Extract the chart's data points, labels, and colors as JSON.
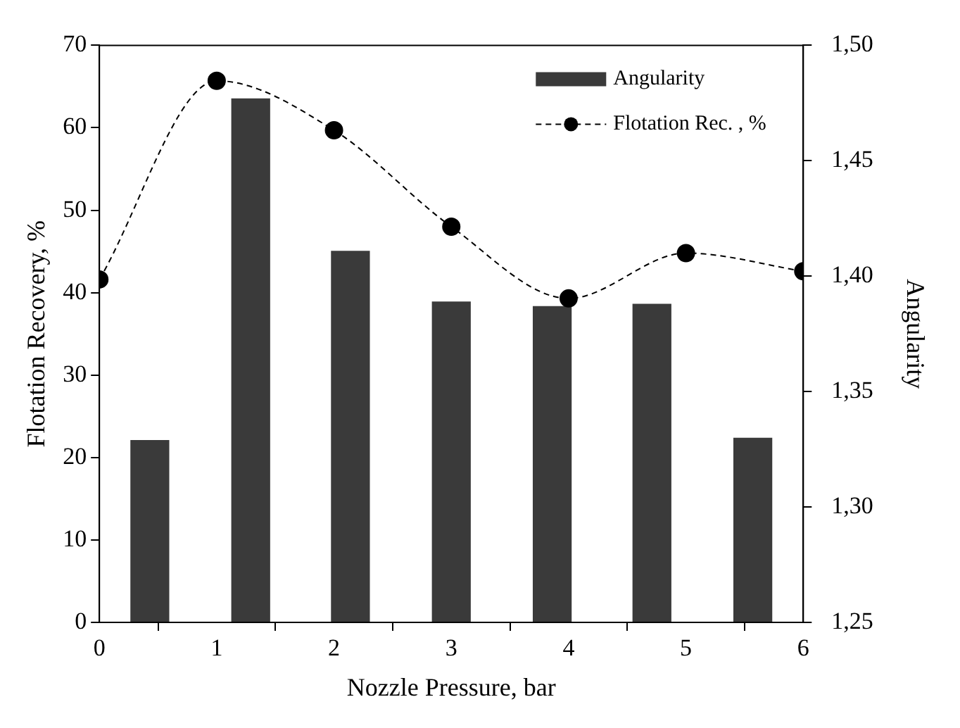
{
  "chart_data": {
    "type": "bar",
    "xlabel": "Nozzle Pressure, bar",
    "ylabel": "Flotation Recovery, %",
    "y2label": "Angularity",
    "xlim": [
      0,
      6
    ],
    "xticks": [
      0,
      1,
      2,
      3,
      4,
      5,
      6
    ],
    "ylim": [
      0,
      70
    ],
    "yticks": [
      0,
      10,
      20,
      30,
      40,
      50,
      60,
      70
    ],
    "y2lim": [
      1.25,
      1.5
    ],
    "y2ticks": [
      {
        "value": 1.25,
        "label": "1,25"
      },
      {
        "value": 1.3,
        "label": "1,30"
      },
      {
        "value": 1.35,
        "label": "1,35"
      },
      {
        "value": 1.4,
        "label": "1,40"
      },
      {
        "value": 1.45,
        "label": "1,45"
      },
      {
        "value": 1.5,
        "label": "1,50"
      }
    ],
    "grid": false,
    "legend": "top right",
    "series": [
      {
        "name": "Angularity",
        "axis": "y2",
        "color": "#3a3a3a",
        "x": [
          0.43,
          1.29,
          2.14,
          3.0,
          3.86,
          4.71,
          5.57
        ],
        "values": [
          1.329,
          1.477,
          1.411,
          1.389,
          1.387,
          1.388,
          1.33
        ]
      },
      {
        "name": "Flotation Rec. , %",
        "type": "line",
        "color": "#000000",
        "marker": "circle",
        "line_style": "dashed",
        "x": [
          0,
          1,
          2,
          3,
          4,
          5,
          6
        ],
        "values": [
          41.6,
          65.7,
          59.7,
          48.0,
          39.3,
          44.8,
          42.6
        ]
      }
    ]
  }
}
